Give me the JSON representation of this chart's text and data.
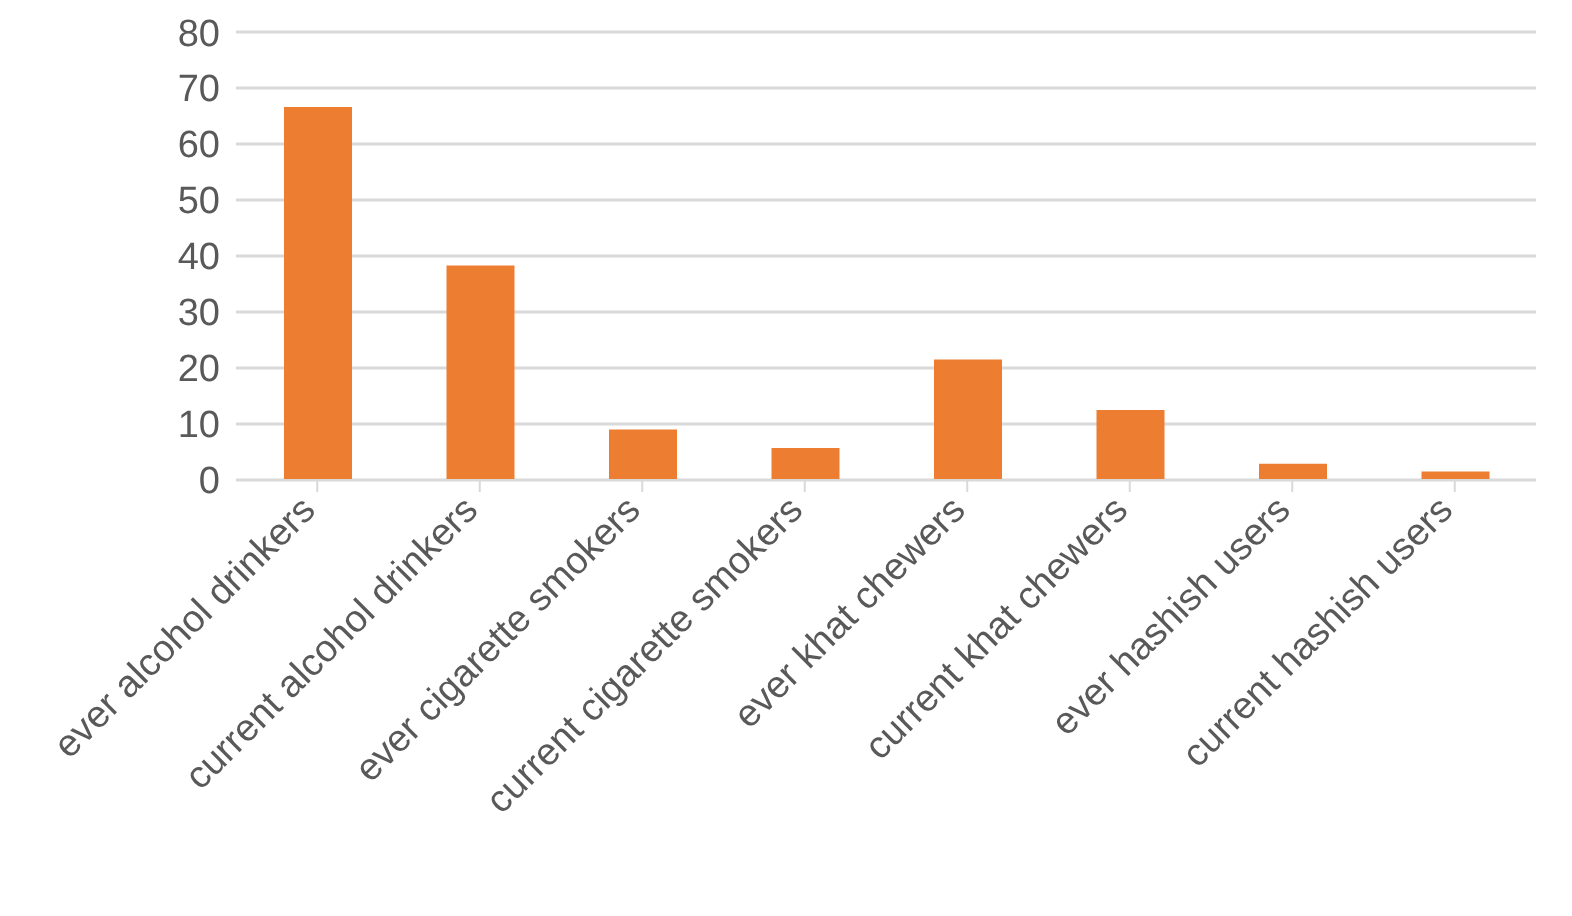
{
  "chart_data": {
    "type": "bar",
    "categories": [
      "ever alcohol drinkers",
      "current alcohol drinkers",
      "ever cigarette smokers",
      "current cigarette smokers",
      "ever khat chewers",
      "current khat chewers",
      "ever hashish users",
      "current hashish users"
    ],
    "values": [
      66.6,
      38.3,
      9,
      5.7,
      21.5,
      12.5,
      2.9,
      1.5
    ],
    "color": "#ed7d31",
    "ylim": [
      0,
      80
    ],
    "yticks": [
      0,
      10,
      20,
      30,
      40,
      50,
      60,
      70,
      80
    ],
    "grid": "y"
  }
}
